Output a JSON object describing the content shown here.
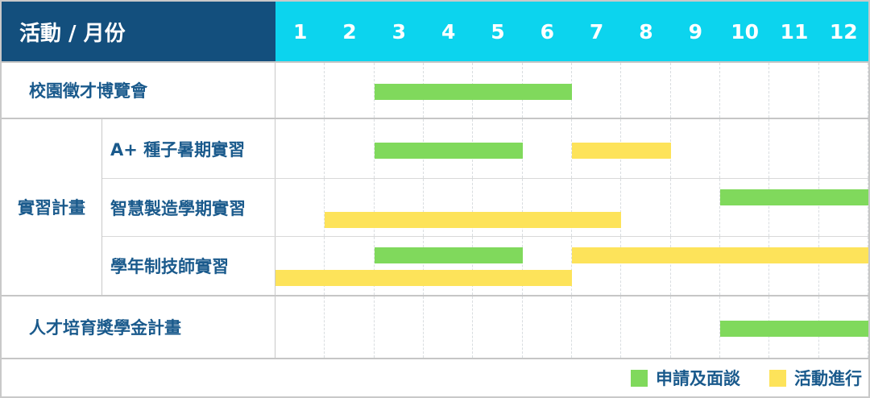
{
  "header": {
    "title": "活動 / 月份",
    "months": [
      "1",
      "2",
      "3",
      "4",
      "5",
      "6",
      "7",
      "8",
      "9",
      "10",
      "11",
      "12"
    ]
  },
  "colors": {
    "header_bg": "#134F7D",
    "months_bg": "#0CD4EE",
    "green": "#80D95C",
    "yellow": "#FDE35A",
    "label_text": "#1A5A8C"
  },
  "legend": {
    "items": [
      {
        "label": "申請及面談",
        "color_key": "green"
      },
      {
        "label": "活動進行",
        "color_key": "yellow"
      }
    ]
  },
  "chart_data": {
    "type": "gantt",
    "title": "活動 / 月份",
    "x_unit": "month",
    "x_range": [
      1,
      12
    ],
    "group_label": "實習計畫",
    "legend": [
      {
        "label": "申請及面談",
        "color_key": "green"
      },
      {
        "label": "活動進行",
        "color_key": "yellow"
      }
    ],
    "rows": [
      {
        "label": "校園徵才博覽會",
        "group": null,
        "bars": [
          {
            "kind": "申請及面談",
            "color": "green",
            "start_month": 3,
            "end_month": 6,
            "lane": "single"
          }
        ]
      },
      {
        "label": "A+ 種子暑期實習",
        "group": "實習計畫",
        "bars": [
          {
            "kind": "申請及面談",
            "color": "green",
            "start_month": 3,
            "end_month": 5,
            "lane": "single"
          },
          {
            "kind": "活動進行",
            "color": "yellow",
            "start_month": 7,
            "end_month": 8,
            "lane": "single"
          }
        ]
      },
      {
        "label": "智慧製造學期實習",
        "group": "實習計畫",
        "bars": [
          {
            "kind": "申請及面談",
            "color": "green",
            "start_month": 10,
            "end_month": 12,
            "lane": "upper"
          },
          {
            "kind": "活動進行",
            "color": "yellow",
            "start_month": 2,
            "end_month": 7,
            "lane": "lower"
          }
        ]
      },
      {
        "label": "學年制技師實習",
        "group": "實習計畫",
        "bars": [
          {
            "kind": "申請及面談",
            "color": "green",
            "start_month": 3,
            "end_month": 5,
            "lane": "upper"
          },
          {
            "kind": "活動進行",
            "color": "yellow",
            "start_month": 7,
            "end_month": 12,
            "lane": "upper"
          },
          {
            "kind": "活動進行",
            "color": "yellow",
            "start_month": 1,
            "end_month": 6,
            "lane": "lower"
          }
        ]
      },
      {
        "label": "人才培育獎學金計畫",
        "group": null,
        "bars": [
          {
            "kind": "申請及面談",
            "color": "green",
            "start_month": 10,
            "end_month": 12,
            "lane": "single"
          }
        ]
      }
    ]
  }
}
